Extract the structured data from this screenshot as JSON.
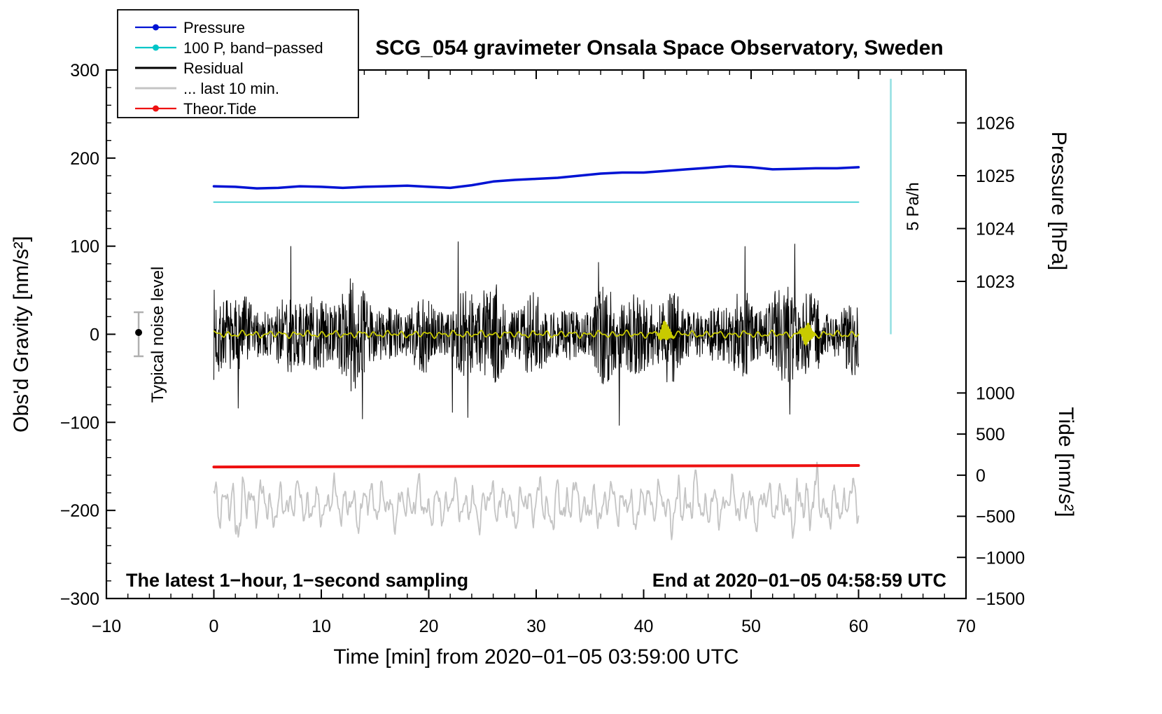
{
  "title": "SCG_054 gravimeter Onsala Space Observatory, Sweden",
  "legend": {
    "items": [
      {
        "label": "Pressure",
        "color": "#0013d4",
        "style": "line-dot"
      },
      {
        "label": "100 P, band−passed",
        "color": "#00c6c8",
        "style": "line-dot"
      },
      {
        "label": "Residual",
        "color": "#000000",
        "style": "line"
      },
      {
        "label": "... last 10 min.",
        "color": "#c4c4c4",
        "style": "line"
      },
      {
        "label": "Theor.Tide",
        "color": "#ee1111",
        "style": "line-dot"
      }
    ]
  },
  "annotations": {
    "noise_marker_label": "Typical noise level",
    "scale_bar_label": "5 Pa/h",
    "sampling_note": "The latest 1−hour, 1−second sampling",
    "end_note": "End at 2020−01−05 04:58:59 UTC"
  },
  "chart_data": {
    "type": "line",
    "x": {
      "label": "Time [min] from 2020−01−05 03:59:00 UTC",
      "min": -10,
      "max": 70,
      "major_ticks": [
        -10,
        0,
        10,
        20,
        30,
        40,
        50,
        60,
        70
      ],
      "tick_labels": [
        "−10",
        "0",
        "10",
        "20",
        "30",
        "40",
        "50",
        "60",
        "70"
      ],
      "minor_step": 2
    },
    "y_gravity": {
      "label": "Obs'd Gravity [nm/s²]",
      "min": -300,
      "max": 300,
      "major_ticks": [
        300,
        200,
        100,
        0,
        -100,
        -200,
        -300
      ],
      "tick_labels": [
        "300",
        "200",
        "100",
        "0",
        "−100",
        "−200",
        "−300"
      ],
      "minor_step": 20
    },
    "y_pressure": {
      "label": "Pressure [hPa]",
      "major_ticks": [
        1026,
        1025,
        1024,
        1023
      ],
      "tick_labels": [
        "1026",
        "1025",
        "1024",
        "1023"
      ],
      "gravity_offset": 1022,
      "gravity_per_unit": 60
    },
    "y_tide": {
      "label": "Tide [nm/s²]",
      "major_ticks": [
        1000,
        500,
        0,
        -500,
        -1000,
        -1500
      ],
      "tick_labels": [
        "1000",
        "500",
        "0",
        "−500",
        "−1000",
        "−1500"
      ],
      "gravity_offset": -160,
      "gravity_per_unit": 0.09333
    },
    "series": {
      "pressure": {
        "label": "Pressure",
        "color": "#0013d4",
        "unit": "hPa",
        "width": 3.5,
        "t": [
          0,
          2,
          4,
          6,
          8,
          10,
          12,
          14,
          16,
          18,
          20,
          22,
          24,
          26,
          28,
          30,
          32,
          34,
          36,
          38,
          40,
          42,
          44,
          46,
          48,
          50,
          52,
          54,
          56,
          58,
          60
        ],
        "values_hpa": [
          1024.8,
          1024.79,
          1024.76,
          1024.77,
          1024.8,
          1024.79,
          1024.77,
          1024.79,
          1024.8,
          1024.81,
          1024.79,
          1024.77,
          1024.82,
          1024.89,
          1024.92,
          1024.94,
          1024.96,
          1025.0,
          1025.04,
          1025.06,
          1025.06,
          1025.09,
          1025.12,
          1025.15,
          1025.18,
          1025.16,
          1025.12,
          1025.13,
          1025.14,
          1025.14,
          1025.16
        ]
      },
      "bandpassed": {
        "label": "100 P, band−passed",
        "color": "#49d2d6",
        "width": 2,
        "gravity_level": 150,
        "t_start": 0,
        "t_end": 60
      },
      "residual": {
        "label": "Residual",
        "color": "#000000",
        "width": 1,
        "center": 0,
        "typical_amplitude": 45,
        "max_amplitude": 105,
        "t_start": 0,
        "t_end": 60,
        "seed": 7
      },
      "residual_lowpass": {
        "label": "Residual low−pass",
        "color": "#c8ca00",
        "width": 1.8,
        "center": 0,
        "amplitude": 2.6,
        "bursts": [
          {
            "t": 42,
            "amplitude": 13
          },
          {
            "t": 55.2,
            "amplitude": 13
          }
        ]
      },
      "residual_last10": {
        "label": "... last 10 min.",
        "color": "#c4c4c4",
        "width": 1.8,
        "center": -193,
        "typical_amplitude": 38,
        "seed": 11,
        "peaks": [
          {
            "t": 2.2,
            "gain": 0.5
          },
          {
            "t": 31.5,
            "gain": 0.28
          },
          {
            "t": 44,
            "gain": 0.38
          },
          {
            "t": 55.3,
            "gain": 0.6
          }
        ]
      },
      "theor_tide": {
        "label": "Theor.Tide",
        "color": "#ee1111",
        "width": 4,
        "unit": "tide nm/s²",
        "t": [
          0,
          60
        ],
        "values_tide": [
          100,
          118
        ]
      }
    },
    "scale_bar": {
      "label": "5 Pa/h",
      "t": 63,
      "gravity_from": 0,
      "gravity_to": 290,
      "color": "#93dfe2"
    },
    "noise_marker": {
      "label": "Typical noise level",
      "t": -7,
      "value": 0,
      "error": 25
    }
  }
}
